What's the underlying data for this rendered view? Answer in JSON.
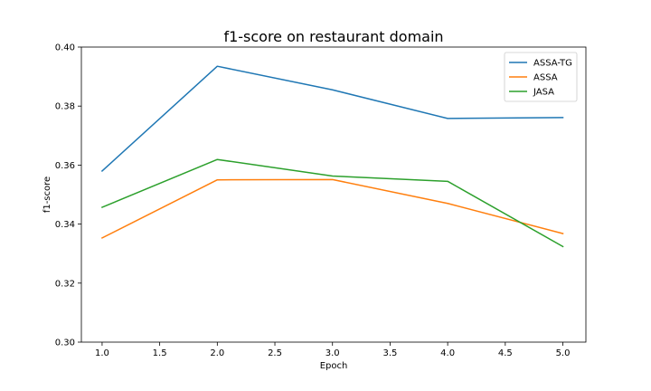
{
  "chart_data": {
    "type": "line",
    "title": "f1-score on restaurant domain",
    "xlabel": "Epoch",
    "ylabel": "f1-score",
    "x": [
      1.0,
      2.0,
      3.0,
      4.0,
      5.0
    ],
    "xlim": [
      0.82,
      5.2
    ],
    "ylim": [
      0.3,
      0.4
    ],
    "xticks": [
      "1.0",
      "1.5",
      "2.0",
      "2.5",
      "3.0",
      "3.5",
      "4.0",
      "4.5",
      "5.0"
    ],
    "yticks": [
      "0.30",
      "0.32",
      "0.34",
      "0.36",
      "0.38",
      "0.40"
    ],
    "grid": false,
    "legend_position": "top-right",
    "series": [
      {
        "name": "ASSA-TG",
        "color": "#1f77b4",
        "values": [
          0.358,
          0.3935,
          0.3855,
          0.3758,
          0.3761
        ]
      },
      {
        "name": "ASSA",
        "color": "#ff7f0e",
        "values": [
          0.3353,
          0.355,
          0.3551,
          0.347,
          0.3368
        ]
      },
      {
        "name": "JASA",
        "color": "#2ca02c",
        "values": [
          0.3457,
          0.3619,
          0.3563,
          0.3545,
          0.3324
        ]
      }
    ]
  }
}
